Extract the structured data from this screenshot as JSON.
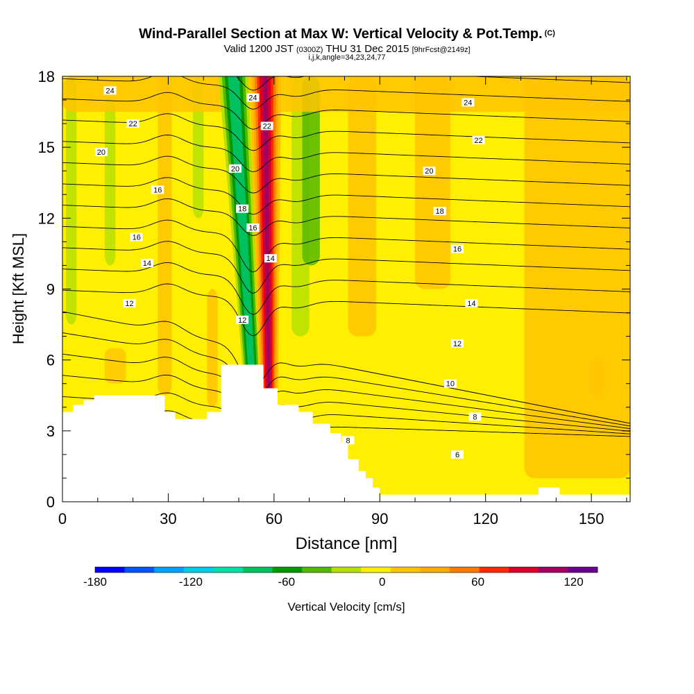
{
  "title": {
    "main": "Wind-Parallel Section at Max W: Vertical Velocity & Pot.Temp.",
    "main_unit": "(C)",
    "valid_prefix": "Valid 1200 JST",
    "valid_z": "(0300Z)",
    "valid_date": "THU 31 Dec 2015",
    "valid_fcst": "[9hrFcst@2149z]",
    "indices": "i,j,k,angle=34,23,24,77"
  },
  "colors": {
    "background_fill": "#FFEF00",
    "terrain": "#FFFFFF",
    "contour": "#000000"
  },
  "colorbar": {
    "colors": [
      "#0000FF",
      "#0055FF",
      "#00A0FF",
      "#00CCE8",
      "#00E0A8",
      "#00C060",
      "#009A00",
      "#55B800",
      "#B5E000",
      "#FFEF00",
      "#FFC400",
      "#FFAA00",
      "#FF7A00",
      "#FF2A00",
      "#D8002A",
      "#A00060",
      "#6A0090"
    ],
    "tick_labels": [
      "-180",
      "-120",
      "-60",
      "0",
      "60",
      "120"
    ],
    "tick_values": [
      -180,
      -120,
      -60,
      0,
      60,
      120
    ],
    "vmin": -180,
    "vmax": 135,
    "label": "Vertical Velocity [cm/s]"
  },
  "chart_data": {
    "type": "heatmap",
    "title": "Wind-Parallel Section at Max W: Vertical Velocity & Pot.Temp.",
    "xlabel": "Distance [nm]",
    "ylabel": "Height [Kft MSL]",
    "xlim": [
      0,
      161
    ],
    "ylim": [
      0,
      18
    ],
    "xticks": [
      0,
      30,
      60,
      90,
      120,
      150
    ],
    "yticks": [
      0,
      3,
      6,
      9,
      12,
      15,
      18
    ],
    "grid": false,
    "filled_field": "Vertical Velocity [cm/s]",
    "contour_field": "Potential Temperature (C)",
    "contour_levels": [
      2,
      4,
      6,
      8,
      10,
      12,
      14,
      16,
      18,
      20,
      22,
      24,
      26
    ],
    "contour_labels": [
      "24",
      "22",
      "20",
      "16",
      "16",
      "14",
      "12",
      "24",
      "22",
      "20",
      "18",
      "16",
      "14",
      "12",
      "8",
      "24",
      "22",
      "20",
      "18",
      "16",
      "14",
      "12",
      "10",
      "8",
      "6"
    ],
    "updraft_band": {
      "x_at_top": 57,
      "x_at_bottom": 58,
      "peak_cm_s": 110
    },
    "downdraft_band": {
      "x_at_top": 50,
      "x_at_bottom": 54,
      "min_cm_s": -75
    },
    "terrain_profile": {
      "x": [
        0,
        3,
        3,
        6,
        6,
        9,
        9,
        12,
        12,
        29,
        29,
        32,
        32,
        41,
        41,
        45,
        45,
        57,
        57,
        61,
        61,
        67,
        67,
        71,
        71,
        76,
        76,
        79,
        79,
        81,
        81,
        84,
        84,
        86,
        86,
        88,
        88,
        90,
        90,
        94,
        94,
        135,
        135,
        141,
        141,
        161
      ],
      "y": [
        3.8,
        3.8,
        4.1,
        4.1,
        4.3,
        4.3,
        4.5,
        4.5,
        4.5,
        4.5,
        3.8,
        3.8,
        3.5,
        3.5,
        3.8,
        3.8,
        5.8,
        5.8,
        4.8,
        4.8,
        4.1,
        4.1,
        3.8,
        3.8,
        3.3,
        3.3,
        2.9,
        2.9,
        2.5,
        2.5,
        1.8,
        1.8,
        1.3,
        1.3,
        1.0,
        1.0,
        0.6,
        0.6,
        0.3,
        0.3,
        0.3,
        0.3,
        0.6,
        0.6,
        0.3,
        0.3
      ]
    }
  }
}
